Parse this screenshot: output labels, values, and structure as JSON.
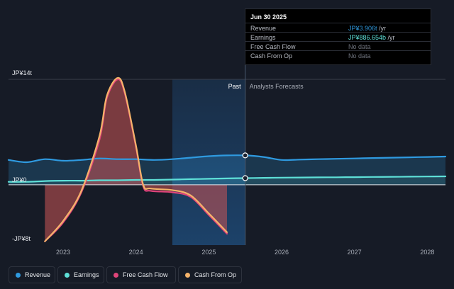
{
  "chart_data": {
    "type": "area",
    "ylim_labels": {
      "top": "JP¥14t",
      "zero": "JP¥0",
      "bottom": "-JP¥8t"
    },
    "ylim": [
      -8,
      14
    ],
    "x_ticks": [
      "2023",
      "2024",
      "2025",
      "2026",
      "2027",
      "2028"
    ],
    "xlim": [
      2022.25,
      2028.25
    ],
    "divider_x": 2025.5,
    "past_label": "Past",
    "forecast_label": "Analysts Forecasts",
    "series": [
      {
        "name": "Revenue",
        "color": "#2f9ae0",
        "x": [
          2022.25,
          2022.5,
          2022.75,
          2023.0,
          2023.25,
          2023.5,
          2023.75,
          2024.0,
          2024.25,
          2024.5,
          2024.75,
          2025.0,
          2025.25,
          2025.5,
          2025.75,
          2026.0,
          2026.25,
          2026.5,
          2026.75,
          2027.0,
          2027.25,
          2027.5,
          2027.75,
          2028.0,
          2028.25
        ],
        "values": [
          3.3,
          3.0,
          3.4,
          3.2,
          3.3,
          3.5,
          3.4,
          3.4,
          3.3,
          3.4,
          3.6,
          3.8,
          3.9,
          3.906,
          3.7,
          3.3,
          3.35,
          3.4,
          3.45,
          3.5,
          3.55,
          3.6,
          3.65,
          3.7,
          3.75
        ]
      },
      {
        "name": "Earnings",
        "color": "#5ee0d8",
        "x": [
          2022.25,
          2022.5,
          2022.75,
          2023.0,
          2023.25,
          2023.5,
          2023.75,
          2024.0,
          2024.25,
          2024.5,
          2024.75,
          2025.0,
          2025.25,
          2025.5,
          2025.75,
          2026.0,
          2026.25,
          2026.5,
          2026.75,
          2027.0,
          2027.25,
          2027.5,
          2027.75,
          2028.0,
          2028.25
        ],
        "values": [
          0.4,
          0.4,
          0.5,
          0.55,
          0.55,
          0.6,
          0.6,
          0.65,
          0.65,
          0.7,
          0.75,
          0.8,
          0.85,
          0.887,
          0.92,
          0.95,
          0.97,
          0.99,
          1.0,
          1.02,
          1.04,
          1.06,
          1.08,
          1.1,
          1.12
        ]
      },
      {
        "name": "Free Cash Flow",
        "color": "#e0457a",
        "x": [
          2022.75,
          2023.0,
          2023.25,
          2023.5,
          2023.6,
          2023.75,
          2023.85,
          2024.0,
          2024.1,
          2024.2,
          2024.5,
          2024.75,
          2025.0,
          2025.25
        ],
        "values": [
          -7.5,
          -5.0,
          -1.0,
          6.0,
          11.5,
          14.0,
          12.0,
          5.0,
          -0.2,
          -0.8,
          -1.0,
          -1.6,
          -4.0,
          -6.5
        ]
      },
      {
        "name": "Cash From Op",
        "color": "#f5b36a",
        "x": [
          2022.75,
          2023.0,
          2023.25,
          2023.5,
          2023.6,
          2023.75,
          2023.85,
          2024.0,
          2024.1,
          2024.2,
          2024.5,
          2024.75,
          2025.0,
          2025.25
        ],
        "values": [
          -7.5,
          -4.8,
          -0.8,
          6.5,
          11.8,
          14.2,
          12.2,
          5.2,
          0.0,
          -0.5,
          -0.7,
          -1.4,
          -3.8,
          -6.3
        ]
      }
    ]
  },
  "tooltip": {
    "date": "Jun 30 2025",
    "rows": [
      {
        "label": "Revenue",
        "value": "JP¥3.906t",
        "unit": " /yr",
        "color": "#2f9ae0"
      },
      {
        "label": "Earnings",
        "value": "JP¥886.654b",
        "unit": " /yr",
        "color": "#5ee0d8"
      },
      {
        "label": "Free Cash Flow",
        "value": "No data",
        "unit": "",
        "color": "#6e737d"
      },
      {
        "label": "Cash From Op",
        "value": "No data",
        "unit": "",
        "color": "#6e737d"
      }
    ]
  },
  "legend": [
    {
      "label": "Revenue",
      "color": "#2f9ae0"
    },
    {
      "label": "Earnings",
      "color": "#5ee0d8"
    },
    {
      "label": "Free Cash Flow",
      "color": "#e0457a"
    },
    {
      "label": "Cash From Op",
      "color": "#f5b36a"
    }
  ]
}
